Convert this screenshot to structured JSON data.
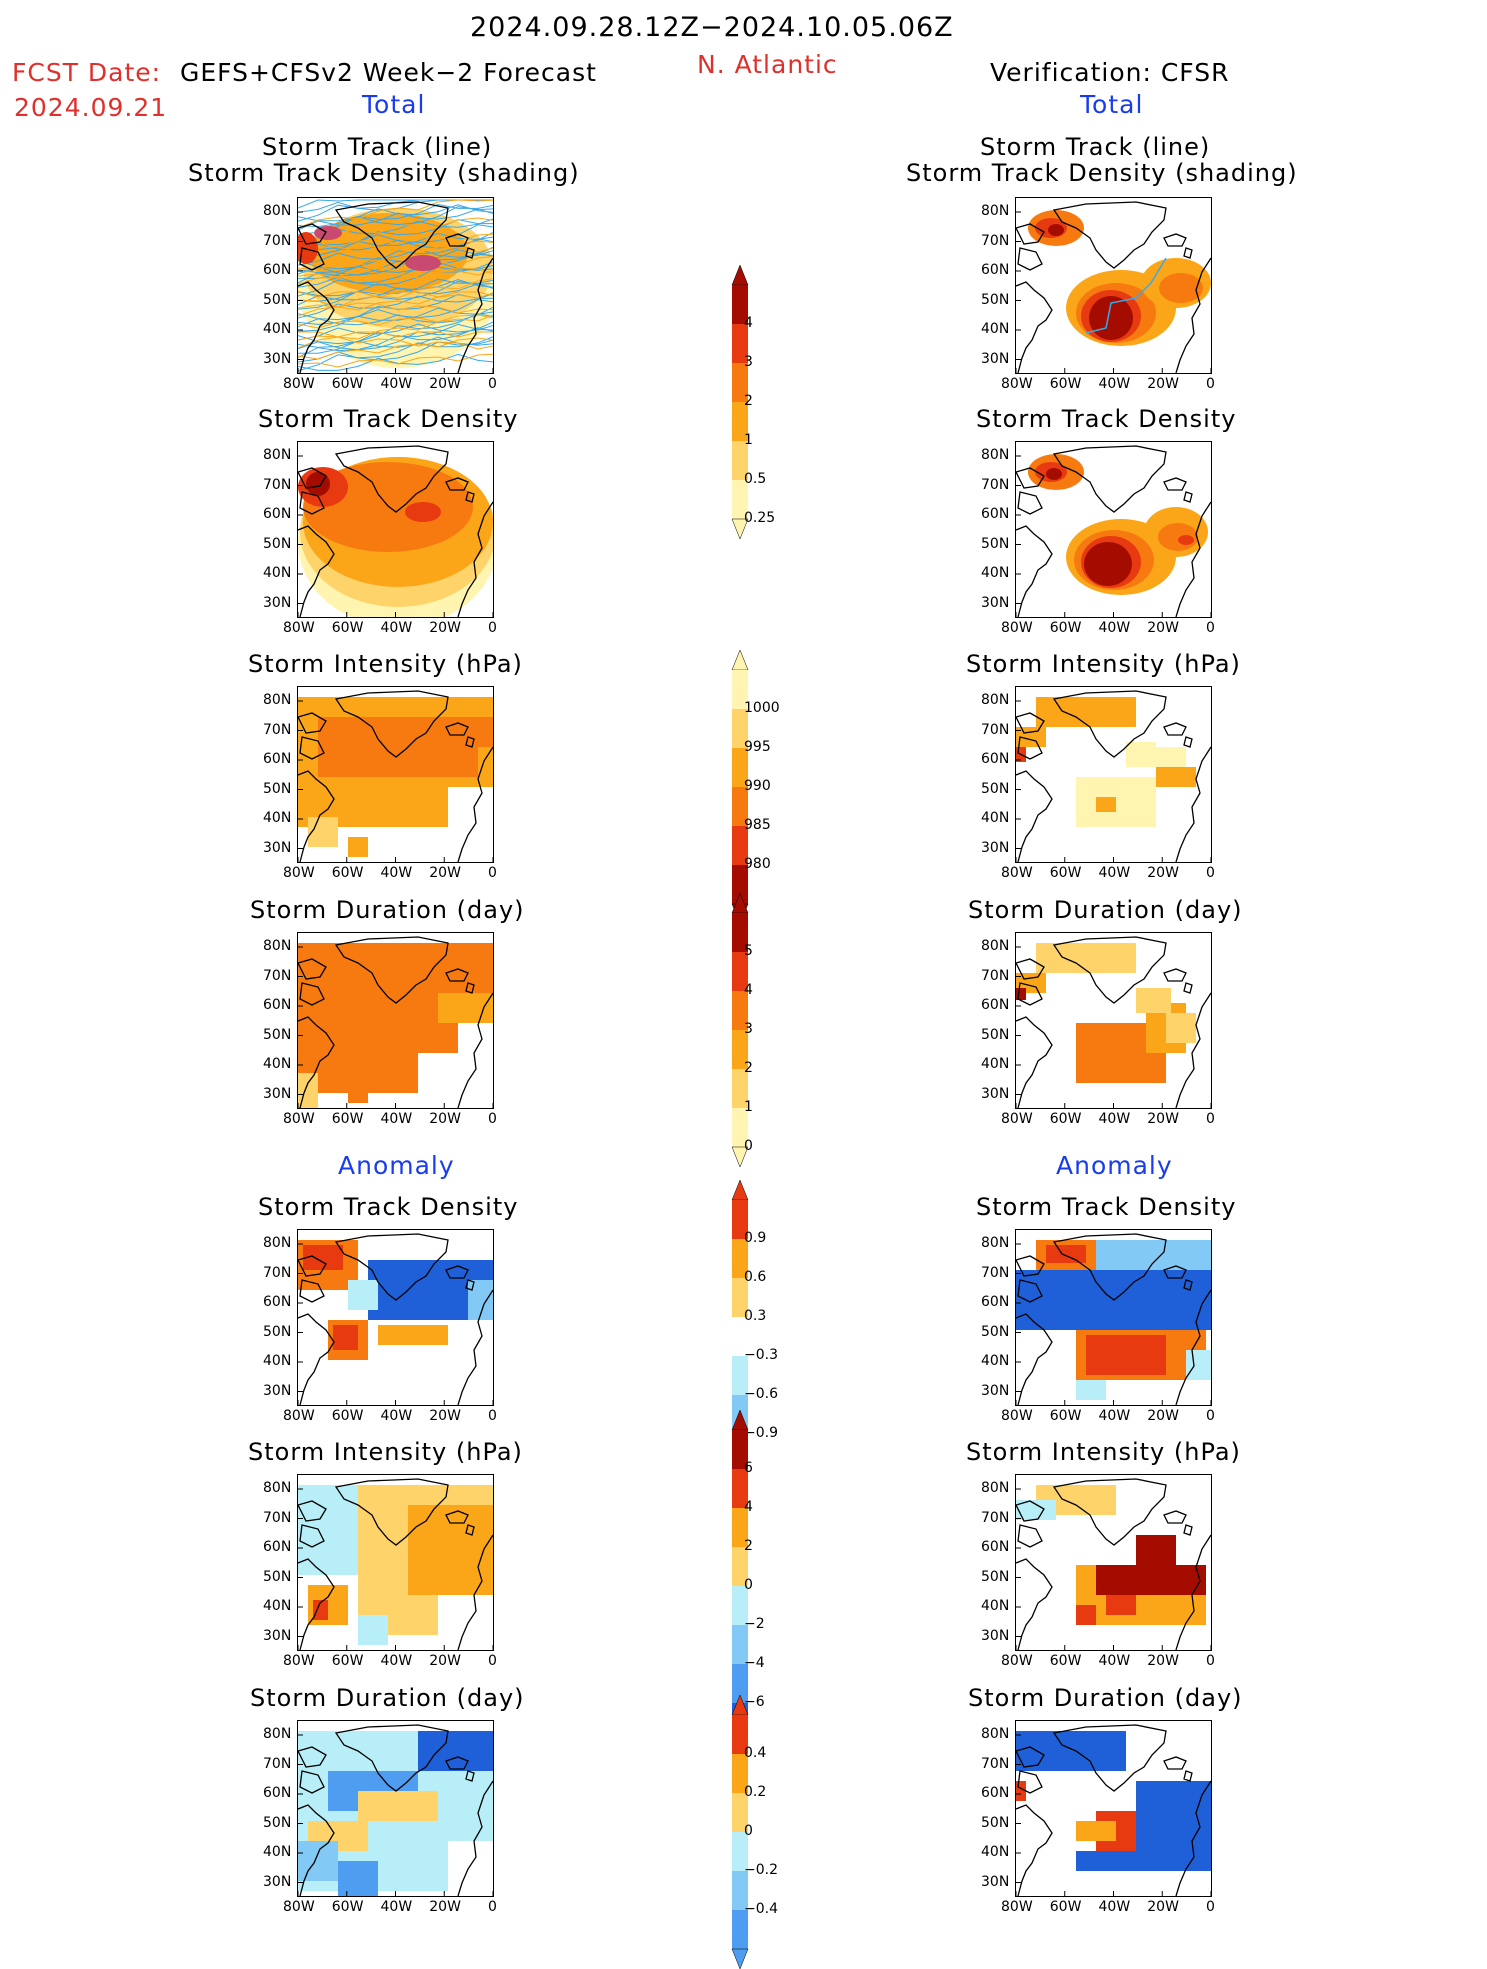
{
  "header": {
    "period": "2024.09.28.12Z−2024.10.05.06Z",
    "fcst_label": "FCST Date:",
    "fcst_model": "GEFS+CFSv2 Week−2 Forecast",
    "fcst_date": "2024.09.21",
    "region": "N. Atlantic",
    "verification": "Verification: CFSR",
    "left_section_total": "Total",
    "right_section_total": "Total",
    "left_section_anomaly": "Anomaly",
    "right_section_anomaly": "Anomaly"
  },
  "panel_titles": {
    "track_line": "Storm Track (line)",
    "track_density_shading": "Storm Track Density (shading)",
    "track_density": "Storm Track Density",
    "intensity": "Storm Intensity (hPa)",
    "duration": "Storm Duration (day)"
  },
  "axes": {
    "lat_ticks": [
      "80N",
      "70N",
      "60N",
      "50N",
      "40N",
      "30N"
    ],
    "lon_ticks": [
      "80W",
      "60W",
      "40W",
      "20W",
      "0"
    ]
  },
  "colorbars": {
    "density_total": [
      "4",
      "3",
      "2",
      "1",
      "0.5",
      "0.25"
    ],
    "intensity_total": [
      "1000",
      "995",
      "990",
      "985",
      "980"
    ],
    "duration_total": [
      "5",
      "4",
      "3",
      "2",
      "1",
      "0"
    ],
    "density_anom": [
      "0.9",
      "0.6",
      "0.3",
      "−0.3",
      "−0.6",
      "−0.9"
    ],
    "intensity_anom": [
      "6",
      "4",
      "2",
      "0",
      "−2",
      "−4",
      "−6"
    ],
    "duration_anom": [
      "0.4",
      "0.2",
      "0",
      "−0.2",
      "−0.4"
    ]
  },
  "colors": {
    "warm": [
      "#fff5b0",
      "#fdd36a",
      "#fba619",
      "#f77a10",
      "#e83a10",
      "#a50c00"
    ],
    "cool": [
      "#b8eef7",
      "#83c9f5",
      "#4f9df0",
      "#1f60d8"
    ],
    "track_line": "#3aa8e8",
    "title_red": "#e0302c",
    "title_blue": "#1a3cf0"
  }
}
